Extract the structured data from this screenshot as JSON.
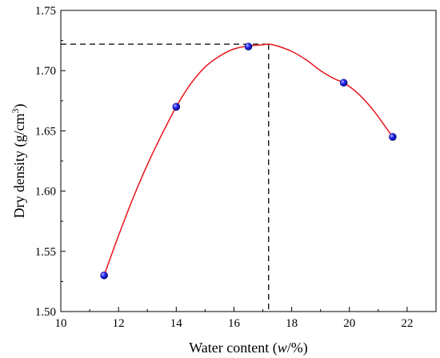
{
  "chart_data": {
    "type": "scatter",
    "title": "",
    "xlabel_prefix": "Water content (",
    "xlabel_var": "w",
    "xlabel_suffix": "/%)",
    "ylabel_main": "Dry density (g/cm",
    "ylabel_sup": "3",
    "ylabel_end": ")",
    "xlim": [
      10,
      23
    ],
    "ylim": [
      1.5,
      1.75
    ],
    "xticks": [
      10,
      12,
      14,
      16,
      18,
      20,
      22
    ],
    "xtick_labels": [
      "10",
      "12",
      "14",
      "16",
      "18",
      "20",
      "22"
    ],
    "yticks": [
      1.5,
      1.55,
      1.6,
      1.65,
      1.7,
      1.75
    ],
    "ytick_labels": [
      "1.50",
      "1.55",
      "1.60",
      "1.65",
      "1.70",
      "1.75"
    ],
    "grid": false,
    "legend": "none",
    "series": [
      {
        "x": [
          11.5,
          14.0,
          16.5,
          19.8,
          21.5
        ],
        "y": [
          1.53,
          1.67,
          1.72,
          1.69,
          1.645
        ]
      }
    ],
    "fit_curve": {
      "color": "#e8141c",
      "x": [
        11.5,
        12.0,
        12.5,
        13.0,
        13.5,
        14.0,
        14.5,
        15.0,
        15.5,
        16.0,
        16.5,
        17.0,
        17.2,
        17.5,
        18.0,
        18.5,
        19.0,
        19.5,
        19.8,
        20.3,
        20.8,
        21.2,
        21.5
      ],
      "y": [
        1.53,
        1.563,
        1.594,
        1.622,
        1.647,
        1.67,
        1.689,
        1.703,
        1.712,
        1.718,
        1.7205,
        1.7215,
        1.722,
        1.7205,
        1.716,
        1.709,
        1.7,
        1.693,
        1.69,
        1.681,
        1.668,
        1.655,
        1.645
      ]
    },
    "optimum": {
      "x": 17.2,
      "y": 1.722
    },
    "colors": {
      "marker": "#1010e0",
      "marker_highlight": "#9aa8ff",
      "curve": "#e8141c",
      "guide": "#000000"
    }
  }
}
